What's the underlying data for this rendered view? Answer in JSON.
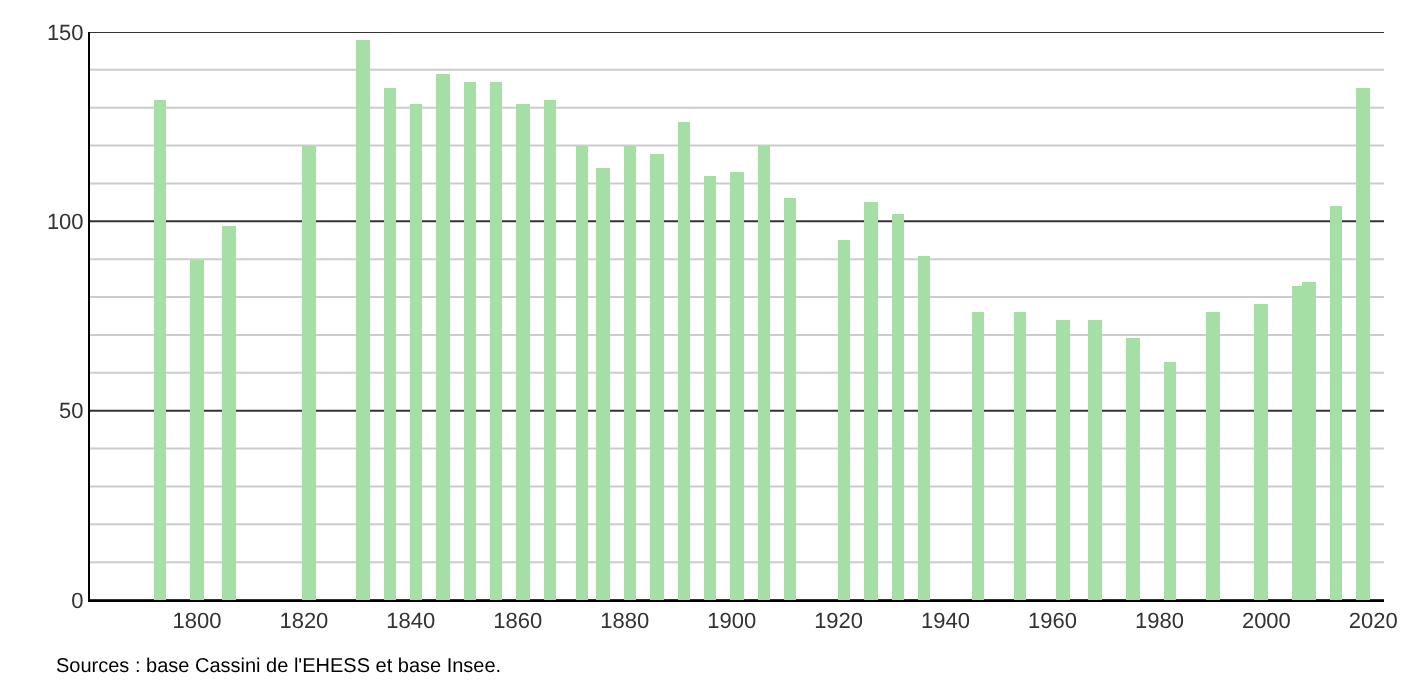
{
  "chart_data": {
    "type": "bar",
    "x": [
      1793,
      1800,
      1806,
      1821,
      1831,
      1836,
      1841,
      1846,
      1851,
      1856,
      1861,
      1866,
      1872,
      1876,
      1881,
      1886,
      1891,
      1896,
      1901,
      1906,
      1911,
      1921,
      1926,
      1931,
      1936,
      1946,
      1954,
      1962,
      1968,
      1975,
      1982,
      1990,
      1999,
      2006,
      2008,
      2013,
      2018
    ],
    "values": [
      132,
      90,
      99,
      120,
      148,
      135,
      131,
      139,
      137,
      137,
      131,
      132,
      120,
      114,
      120,
      118,
      126,
      112,
      113,
      120,
      106,
      95,
      105,
      102,
      91,
      76,
      76,
      74,
      74,
      69,
      63,
      76,
      78,
      83,
      84,
      104,
      135
    ],
    "color": "#a6dfa6",
    "xlim": [
      1780,
      2022
    ],
    "xticks": [
      1800,
      1820,
      1840,
      1860,
      1880,
      1900,
      1920,
      1940,
      1960,
      1980,
      2000,
      2020
    ],
    "ylim": [
      0,
      150
    ],
    "yticks": [
      0,
      {
        "value": 10,
        "label": null
      },
      {
        "value": 20,
        "label": null
      },
      {
        "value": 30,
        "label": null
      },
      {
        "value": 40,
        "label": null
      },
      50,
      {
        "value": 60,
        "label": null
      },
      {
        "value": 70,
        "label": null
      },
      {
        "value": 80,
        "label": null
      },
      {
        "value": 90,
        "label": null
      },
      100,
      {
        "value": 110,
        "label": null
      },
      {
        "value": 120,
        "label": null
      },
      {
        "value": 130,
        "label": null
      },
      {
        "value": 140,
        "label": null
      },
      150
    ],
    "grid": "y",
    "annotations": [
      "Sources : base Cassini de l'EHESS et base Insee."
    ]
  }
}
